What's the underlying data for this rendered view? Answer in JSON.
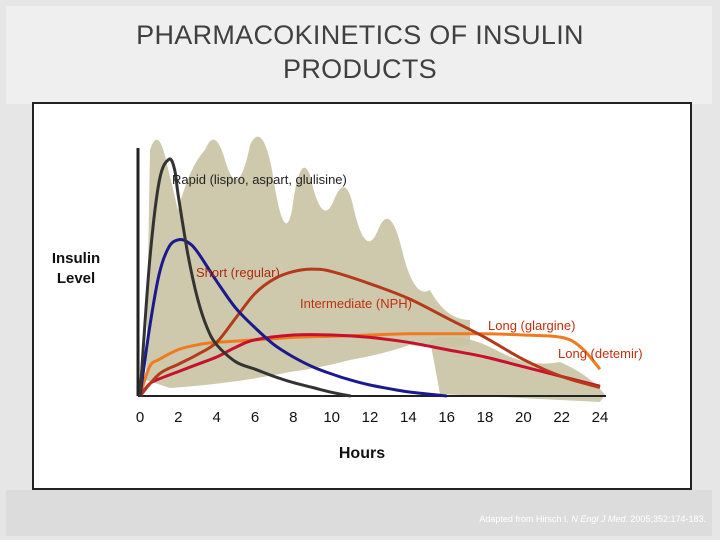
{
  "slide": {
    "title": "PHARMACOKINETICS OF INSULIN\nPRODUCTS",
    "citation_prefix": "Adapted from Hirsch I. ",
    "citation_journal": "N Engl J Med.",
    "citation_suffix": " 2005;352:174-183."
  },
  "chart_data": {
    "type": "line",
    "title": "",
    "xlabel": "Hours",
    "ylabel": "Insulin\nLevel",
    "xlim": [
      0,
      24
    ],
    "ylim": [
      0,
      1
    ],
    "xticks": [
      "0",
      "2",
      "4",
      "6",
      "8",
      "10",
      "12",
      "14",
      "16",
      "18",
      "20",
      "22",
      "24"
    ],
    "grid": false,
    "legend": "inline labels",
    "series": [
      {
        "name": "Rapid (lispro, aspart, glulisine)",
        "color": "#333333",
        "label_color": "#222222",
        "x": [
          0,
          0.5,
          1,
          1.5,
          1.8,
          2,
          2.5,
          3,
          3.5,
          4,
          5,
          6,
          7,
          8,
          9,
          10,
          11
        ],
        "y": [
          0,
          0.55,
          0.88,
          0.97,
          0.93,
          0.82,
          0.58,
          0.4,
          0.28,
          0.21,
          0.14,
          0.11,
          0.08,
          0.055,
          0.035,
          0.015,
          0.0
        ]
      },
      {
        "name": "Short (regular)",
        "color": "#1a1a8c",
        "label_color": "#b02a10",
        "x": [
          0,
          0.5,
          1,
          1.5,
          2,
          2.5,
          3,
          4,
          5,
          6,
          7,
          8,
          9,
          10,
          11,
          12,
          13,
          14,
          15,
          16
        ],
        "y": [
          0,
          0.28,
          0.5,
          0.61,
          0.64,
          0.63,
          0.59,
          0.47,
          0.36,
          0.28,
          0.21,
          0.16,
          0.12,
          0.09,
          0.065,
          0.045,
          0.03,
          0.017,
          0.008,
          0.0
        ]
      },
      {
        "name": "Intermediate (NPH)",
        "color": "#b33a1a",
        "label_color": "#c03010",
        "x": [
          0,
          1,
          2,
          3,
          4,
          5,
          6,
          7,
          8,
          9,
          10,
          12,
          14,
          16,
          18,
          20,
          22,
          24
        ],
        "y": [
          0,
          0.09,
          0.13,
          0.17,
          0.22,
          0.32,
          0.42,
          0.48,
          0.51,
          0.52,
          0.51,
          0.46,
          0.4,
          0.32,
          0.24,
          0.15,
          0.08,
          0.035
        ]
      },
      {
        "name": "Long (glargine)",
        "color": "#f07a1f",
        "label_color": "#c03010",
        "x": [
          0,
          0.5,
          1,
          2,
          3,
          4,
          6,
          8,
          10,
          12,
          14,
          16,
          18,
          20,
          22,
          23,
          24
        ],
        "y": [
          0,
          0.12,
          0.15,
          0.19,
          0.21,
          0.22,
          0.23,
          0.24,
          0.245,
          0.25,
          0.255,
          0.255,
          0.255,
          0.25,
          0.24,
          0.2,
          0.11
        ]
      },
      {
        "name": "Long (detemir)",
        "color": "#c8102e",
        "label_color": "#c03010",
        "x": [
          0,
          0.5,
          1,
          2,
          3,
          4,
          5,
          6,
          8,
          10,
          12,
          14,
          16,
          18,
          20,
          22,
          24
        ],
        "y": [
          0,
          0.05,
          0.07,
          0.1,
          0.13,
          0.16,
          0.2,
          0.23,
          0.25,
          0.25,
          0.24,
          0.22,
          0.19,
          0.16,
          0.12,
          0.08,
          0.04
        ]
      }
    ]
  }
}
